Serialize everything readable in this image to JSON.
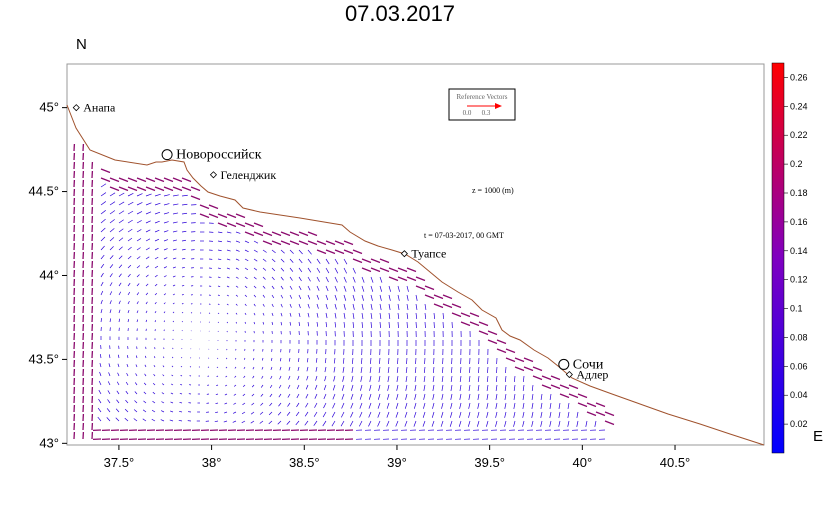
{
  "title": "07.03.2017",
  "axis": {
    "north_label": "N",
    "east_label": "E",
    "lon_ticks": [
      {
        "value": 37.5,
        "label": "37.5°"
      },
      {
        "value": 38.0,
        "label": "38°"
      },
      {
        "value": 38.5,
        "label": "38.5°"
      },
      {
        "value": 39.0,
        "label": "39°"
      },
      {
        "value": 39.5,
        "label": "39.5°"
      },
      {
        "value": 40.0,
        "label": "40°"
      },
      {
        "value": 40.5,
        "label": "40.5°"
      }
    ],
    "lat_ticks": [
      {
        "value": 43.0,
        "label": "43°"
      },
      {
        "value": 43.5,
        "label": "43.5°"
      },
      {
        "value": 44.0,
        "label": "44°"
      },
      {
        "value": 44.5,
        "label": "44.5°"
      },
      {
        "value": 45.0,
        "label": "45°"
      }
    ],
    "lon_range": [
      37.22,
      40.98
    ],
    "lat_range": [
      42.99,
      45.26
    ]
  },
  "cities": [
    {
      "name": "Анапа",
      "lon": 37.27,
      "lat": 45.0,
      "marker": "diamond",
      "size": "small"
    },
    {
      "name": "Новороссийск",
      "lon": 37.76,
      "lat": 44.72,
      "marker": "circle",
      "size": "big"
    },
    {
      "name": "Геленджик",
      "lon": 38.01,
      "lat": 44.6,
      "marker": "diamond",
      "size": "small"
    },
    {
      "name": "Туапсе",
      "lon": 39.04,
      "lat": 44.13,
      "marker": "diamond",
      "size": "small"
    },
    {
      "name": "Сочи",
      "lon": 39.9,
      "lat": 43.47,
      "marker": "circle",
      "size": "big"
    },
    {
      "name": "Адлер",
      "lon": 39.93,
      "lat": 43.41,
      "marker": "diamond",
      "size": "small"
    }
  ],
  "annotations": {
    "depth": "z = 1000 (m)",
    "time": "t = 07-03-2017, 00 GMT"
  },
  "reference_vector": {
    "title": "Reference Vectors",
    "label_start": "0.0",
    "label_end": "0.3"
  },
  "colorbar": {
    "min": 0.0,
    "max": 0.27,
    "ticks": [
      "0.02",
      "0.04",
      "0.06",
      "0.08",
      "0.1",
      "0.12",
      "0.14",
      "0.16",
      "0.18",
      "0.2",
      "0.22",
      "0.24",
      "0.26"
    ],
    "color_low": "#0000ff",
    "color_high": "#ff0000"
  },
  "colors": {
    "coastline": "#a0522d",
    "vector_weak": "#2a00d8",
    "vector_strong": "#8b0a6e"
  }
}
